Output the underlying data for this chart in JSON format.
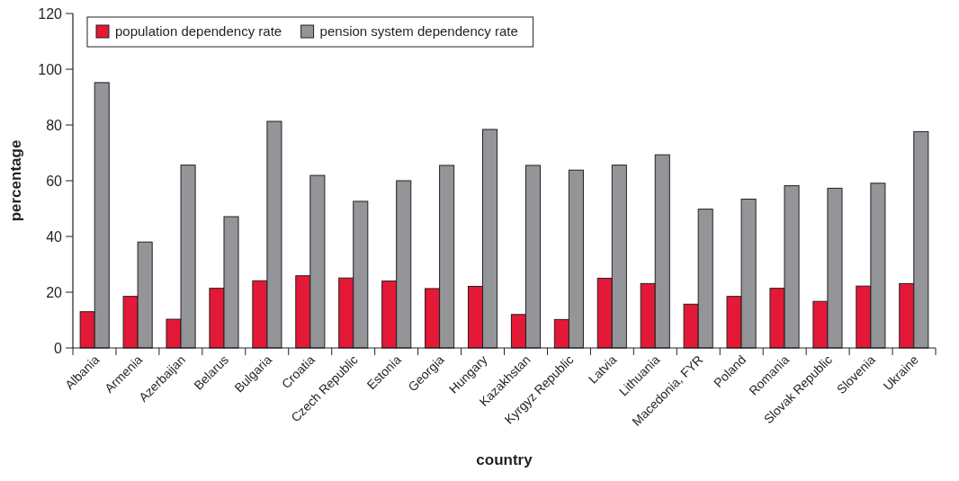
{
  "chart_data": {
    "type": "bar",
    "xlabel": "country",
    "ylabel": "percentage",
    "categories": [
      "Albania",
      "Armenia",
      "Azerbaijan",
      "Belarus",
      "Bulgaria",
      "Croatia",
      "Czech Republic",
      "Estonia",
      "Georgia",
      "Hungary",
      "Kazakhstan",
      "Kyrgyz Republic",
      "Latvia",
      "Lithuania",
      "Macedonia, FYR",
      "Poland",
      "Romania",
      "Slovak Republic",
      "Slovenia",
      "Ukraine"
    ],
    "series": [
      {
        "name": "population dependency rate",
        "color": "#e31937",
        "values": [
          13.0,
          18.5,
          10.3,
          21.4,
          24.1,
          25.9,
          25.1,
          24.0,
          21.3,
          22.1,
          12.0,
          10.2,
          25.0,
          23.1,
          15.7,
          18.5,
          21.4,
          16.7,
          22.2,
          23.1
        ]
      },
      {
        "name": "pension system dependency rate",
        "color": "#939598",
        "values": [
          95.2,
          38.0,
          65.6,
          47.1,
          81.3,
          61.9,
          52.6,
          60.0,
          65.5,
          78.4,
          65.5,
          63.8,
          65.6,
          69.3,
          49.8,
          53.4,
          58.2,
          57.3,
          59.1,
          77.6
        ]
      }
    ],
    "ylim": [
      0,
      120
    ],
    "yticks": [
      0,
      20,
      40,
      60,
      80,
      100,
      120
    ],
    "grid": false,
    "legend": "top left"
  }
}
